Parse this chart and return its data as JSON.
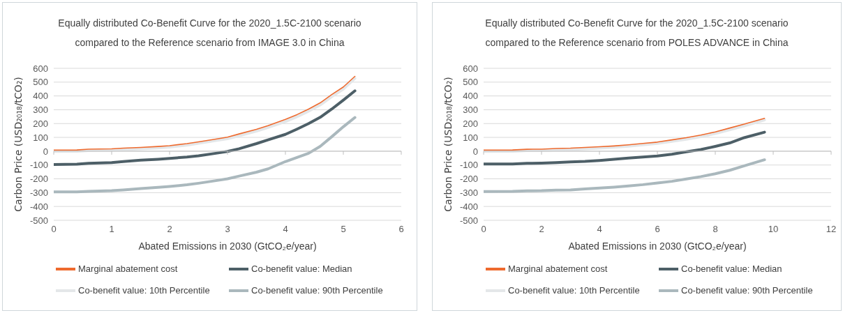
{
  "chart_data": [
    {
      "type": "line",
      "title": "Equally distributed Co-Benefit Curve for the 2020_1.5C-2100 scenario compared to the Reference scenario from IMAGE 3.0 in China",
      "xlabel": "Abated Emissions in 2030 (GtCO₂e/year)",
      "ylabel": "Carbon Price (USD₂₀₁₈/tCO₂)",
      "x": [
        0,
        0.4,
        0.6,
        1,
        1.2,
        1.5,
        1.8,
        2,
        2.3,
        2.5,
        2.8,
        3,
        3.2,
        3.5,
        3.7,
        4,
        4.2,
        4.4,
        4.6,
        4.8,
        5,
        5.2
      ],
      "series": [
        {
          "name": "Marginal abatement cost",
          "color": "#ee6a2e",
          "values": [
            8,
            9,
            15,
            17,
            22,
            27,
            34,
            40,
            55,
            68,
            88,
            102,
            125,
            158,
            185,
            230,
            265,
            305,
            350,
            410,
            465,
            542
          ]
        },
        {
          "name": "Co-benefit value: Median",
          "color": "#4d5f67",
          "values": [
            -96,
            -94,
            -88,
            -82,
            -75,
            -65,
            -58,
            -52,
            -42,
            -33,
            -15,
            -2,
            18,
            55,
            82,
            122,
            160,
            200,
            245,
            305,
            370,
            437
          ]
        },
        {
          "name": "Co-benefit value: 10th Percentile",
          "color": "#e4e7e9",
          "values": [
            -2,
            0,
            5,
            7,
            12,
            17,
            24,
            30,
            44,
            57,
            77,
            90,
            112,
            145,
            172,
            215,
            250,
            290,
            335,
            395,
            450,
            528
          ]
        },
        {
          "name": "Co-benefit value: 90th Percentile",
          "color": "#aab8bd",
          "values": [
            -295,
            -294,
            -290,
            -285,
            -280,
            -271,
            -262,
            -255,
            -243,
            -232,
            -213,
            -200,
            -180,
            -152,
            -128,
            -75,
            -45,
            -15,
            35,
            105,
            177,
            244
          ]
        }
      ],
      "xlim": [
        0,
        6
      ],
      "xticks": [
        0,
        1,
        2,
        3,
        4,
        5,
        6
      ],
      "ylim": [
        -500,
        600
      ],
      "yticks": [
        -500,
        -400,
        -300,
        -200,
        -100,
        0,
        100,
        200,
        300,
        400,
        500,
        600
      ],
      "grid": "y",
      "legend": "bottom"
    },
    {
      "type": "line",
      "title": "Equally distributed Co-Benefit Curve for the 2020_1.5C-2100 scenario compared to the Reference scenario from POLES ADVANCE in China",
      "xlabel": "Abated Emissions in 2030 (GtCO₂e/year)",
      "ylabel": "Carbon Price (USD₂₀₁₈/tCO₂)",
      "x": [
        0,
        1,
        1.5,
        2,
        2.5,
        3,
        3.5,
        4,
        4.5,
        5,
        5.5,
        6,
        6.5,
        7,
        7.5,
        8,
        8.5,
        9,
        9.7
      ],
      "series": [
        {
          "name": "Marginal abatement cost",
          "color": "#ee6a2e",
          "values": [
            8,
            9,
            14,
            15,
            20,
            22,
            27,
            32,
            38,
            46,
            56,
            66,
            82,
            98,
            117,
            140,
            168,
            196,
            238
          ]
        },
        {
          "name": "Co-benefit value: Median",
          "color": "#4d5f67",
          "values": [
            -93,
            -92,
            -88,
            -86,
            -83,
            -78,
            -74,
            -67,
            -58,
            -50,
            -42,
            -34,
            -22,
            -4,
            12,
            35,
            60,
            98,
            138
          ]
        },
        {
          "name": "Co-benefit value: 10th Percentile",
          "color": "#e4e7e9",
          "values": [
            -2,
            -1,
            4,
            5,
            10,
            12,
            17,
            22,
            28,
            36,
            46,
            56,
            71,
            87,
            105,
            128,
            156,
            184,
            226
          ]
        },
        {
          "name": "Co-benefit value: 90th Percentile",
          "color": "#aab8bd",
          "values": [
            -292,
            -291,
            -287,
            -286,
            -282,
            -280,
            -273,
            -267,
            -260,
            -251,
            -242,
            -230,
            -218,
            -201,
            -184,
            -163,
            -138,
            -106,
            -62
          ]
        }
      ],
      "xlim": [
        0,
        12
      ],
      "xticks": [
        0,
        2,
        4,
        6,
        8,
        10,
        12
      ],
      "ylim": [
        -500,
        600
      ],
      "yticks": [
        -500,
        -400,
        -300,
        -200,
        -100,
        0,
        100,
        200,
        300,
        400,
        500,
        600
      ],
      "grid": "y",
      "legend": "bottom"
    }
  ]
}
